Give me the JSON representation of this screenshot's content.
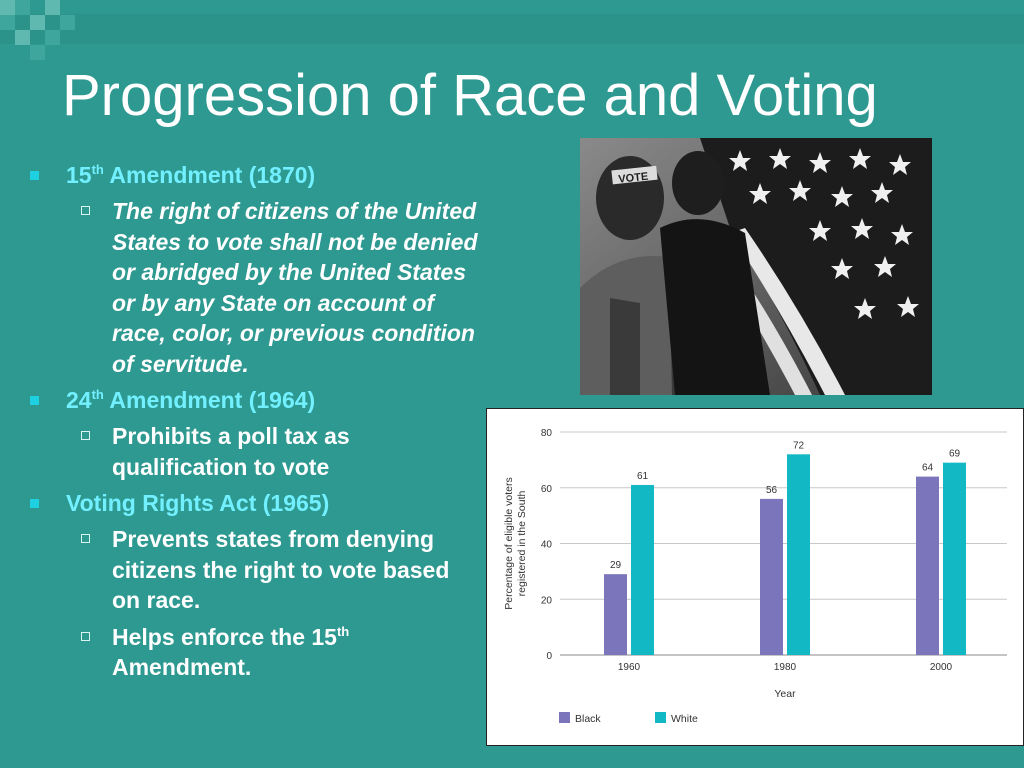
{
  "slide": {
    "title": "Progression of Race and Voting",
    "items": [
      {
        "label_prefix": "15",
        "label_sup": "th",
        "label_suffix": " Amendment (1870)",
        "sub": [
          {
            "text": "The right of citizens of the United States to vote shall not be denied or abridged by the United States or by any State on account of race, color, or previous condition of servitude.",
            "italic": true
          }
        ]
      },
      {
        "label_prefix": "24",
        "label_sup": "th",
        "label_suffix": " Amendment (1964)",
        "sub": [
          {
            "text": "Prohibits a poll tax as qualification to vote",
            "italic": false
          }
        ]
      },
      {
        "label": "Voting Rights Act (1965)",
        "sub": [
          {
            "text": "Prevents states from denying citizens the right to vote based on race.",
            "italic": false
          },
          {
            "text_prefix": "Helps enforce the 15",
            "text_sup": "th",
            "text_suffix": " Amendment.",
            "italic": false
          }
        ]
      }
    ]
  },
  "photo": {
    "icons": [
      "protesters-photo",
      "american-flag-icon"
    ],
    "headband_text": "VOTE"
  },
  "chart_data": {
    "type": "bar",
    "categories": [
      "1960",
      "1980",
      "2000"
    ],
    "series": [
      {
        "name": "Black",
        "values": [
          29,
          56,
          64
        ],
        "color": "#7b75bb"
      },
      {
        "name": "White",
        "values": [
          61,
          72,
          69
        ],
        "color": "#12b8c4"
      }
    ],
    "xlabel": "Year",
    "ylabel_lines": [
      "Percentage of eligible voters",
      "registered in the South"
    ],
    "ylim": [
      0,
      80
    ],
    "yticks": [
      0,
      20,
      40,
      60,
      80
    ],
    "grid": true,
    "legend_position": "bottom-left"
  }
}
